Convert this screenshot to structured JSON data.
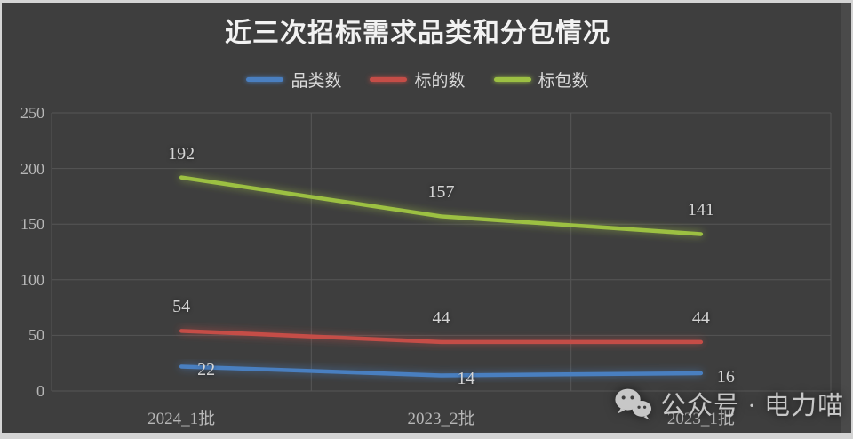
{
  "page": {
    "background_color": "#3e3e3e",
    "frame_color": "#d4d4d4"
  },
  "chart_data": {
    "type": "line",
    "title": "近三次招标需求品类和分包情况",
    "categories": [
      "2024_1批",
      "2023_2批",
      "2023_1批"
    ],
    "series": [
      {
        "name": "品类数",
        "color": "#4a7fc0",
        "values": [
          22,
          14,
          16
        ]
      },
      {
        "name": "标的数",
        "color": "#c54d47",
        "values": [
          54,
          44,
          44
        ]
      },
      {
        "name": "标包数",
        "color": "#9cc043",
        "values": [
          192,
          157,
          141
        ]
      }
    ],
    "xlabel": "",
    "ylabel": "",
    "ylim": [
      0,
      250
    ],
    "yticks": [
      0,
      50,
      100,
      150,
      200,
      250
    ],
    "grid": true,
    "legend_position": "top",
    "gridline_color": "#565656",
    "tick_label_color": "#b7b7b7",
    "data_label_color": "#d4d4d4",
    "title_color": "#f2f2f2"
  },
  "watermark": {
    "icon": "wechat-icon",
    "text": "公众号 · 电力喵"
  }
}
